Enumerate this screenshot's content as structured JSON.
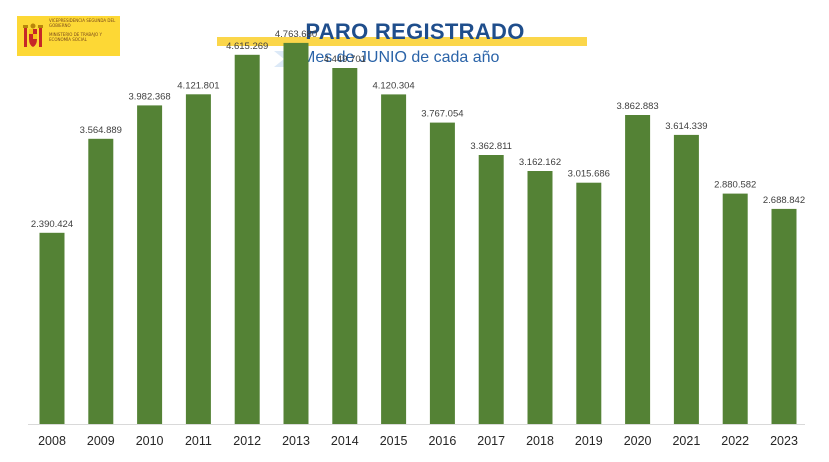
{
  "header": {
    "logo_lines": [
      "VICEPRESIDENCIA SEGUNDA DEL GOBIERNO",
      "MINISTERIO DE TRABAJO Y ECONOMÍA SOCIAL"
    ],
    "title": "PARO REGISTRADO",
    "subtitle": "Mes de JUNIO de cada año"
  },
  "colors": {
    "bar": "#548235",
    "title": "#1f4e8c",
    "subtitle": "#2a63a8",
    "accent_yellow": "#fbd64a"
  },
  "chart_data": {
    "type": "bar",
    "title": "PARO REGISTRADO",
    "subtitle": "Mes de JUNIO de cada año",
    "xlabel": "",
    "ylabel": "",
    "ylim": [
      0,
      5000000
    ],
    "grid": false,
    "legend": "none",
    "categories": [
      "2008",
      "2009",
      "2010",
      "2011",
      "2012",
      "2013",
      "2014",
      "2015",
      "2016",
      "2017",
      "2018",
      "2019",
      "2020",
      "2021",
      "2022",
      "2023"
    ],
    "series": [
      {
        "values": [
          2390424,
          3564889,
          3982368,
          4121801,
          4615269,
          4763680,
          4449701,
          4120304,
          3767054,
          3362811,
          3162162,
          3015686,
          3862883,
          3614339,
          2880582,
          2688842
        ],
        "labels": [
          "2.390.424",
          "3.564.889",
          "3.982.368",
          "4.121.801",
          "4.615.269",
          "4.763.680",
          "4.449.701",
          "4.120.304",
          "3.767.054",
          "3.362.811",
          "3.162.162",
          "3.015.686",
          "3.862.883",
          "3.614.339",
          "2.880.582",
          "2.688.842"
        ]
      }
    ]
  }
}
